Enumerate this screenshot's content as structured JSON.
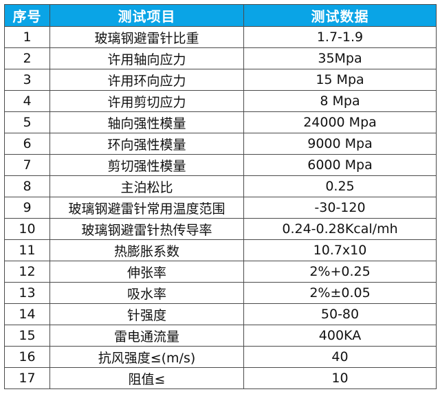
{
  "table": {
    "headers": [
      "序号",
      "测试项目",
      "测试数据"
    ],
    "rows": [
      [
        "1",
        "玻璃钢避雷针比重",
        "1.7-1.9"
      ],
      [
        "2",
        "许用轴向应力",
        "35Mpa"
      ],
      [
        "3",
        "许用环向应力",
        "15 Mpa"
      ],
      [
        "4",
        "许用剪切应力",
        "8 Mpa"
      ],
      [
        "5",
        "轴向强性模量",
        "24000 Mpa"
      ],
      [
        "6",
        "环向强性模量",
        "9000 Mpa"
      ],
      [
        "7",
        "剪切强性模量",
        "6000 Mpa"
      ],
      [
        "8",
        "主泊松比",
        "0.25"
      ],
      [
        "9",
        "玻璃钢避雷针常用温度范围",
        "-30-120"
      ],
      [
        "10",
        "玻璃钢避雷针热传导率",
        "0.24-0.28Kcal/mh"
      ],
      [
        "11",
        "热膨胀系数",
        "10.7x10"
      ],
      [
        "12",
        "伸张率",
        "2%+0.25"
      ],
      [
        "13",
        "吸水率",
        "2%±0.05"
      ],
      [
        "14",
        "针强度",
        "50-80"
      ],
      [
        "15",
        "雷电通流量",
        "400KA"
      ],
      [
        "16",
        "抗风强度≤(m/s)",
        "40"
      ],
      [
        "17",
        "阻值≤",
        "10"
      ]
    ]
  },
  "colors": {
    "header_bg": "#0aa4e6",
    "header_text": "#ffffff",
    "border": "#4a4a4a"
  }
}
